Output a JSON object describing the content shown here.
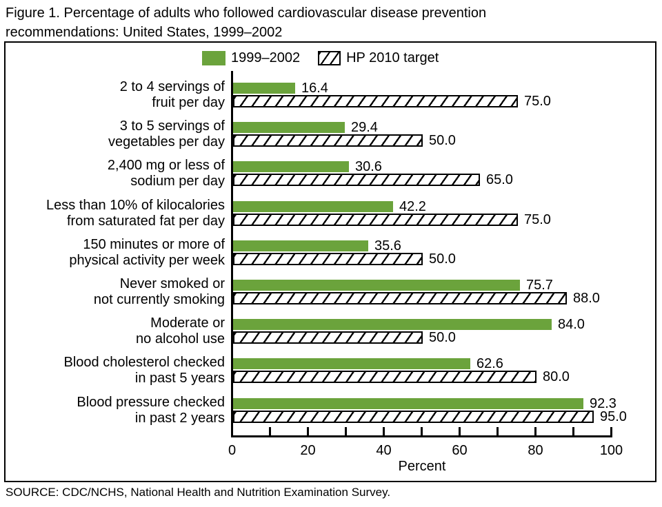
{
  "title_lines": [
    "Figure 1. Percentage of adults who followed cardiovascular disease prevention",
    "recommendations: United States, 1999–2002"
  ],
  "legend": {
    "series1": "1999–2002",
    "series2": "HP 2010 target"
  },
  "colors": {
    "series1_green": "#6ba33c",
    "axis_and_text": "#000000",
    "hatch_fill": "#ffffff"
  },
  "source": "SOURCE: CDC/NCHS, National Health and Nutrition Examination Survey.",
  "chart_data": {
    "type": "bar",
    "orientation": "horizontal",
    "title": "Figure 1. Percentage of adults who followed cardiovascular disease prevention recommendations: United States, 1999–2002",
    "categories": [
      [
        "2 to 4 servings of",
        "fruit per day"
      ],
      [
        "3 to 5 servings of",
        "vegetables per day"
      ],
      [
        "2,400 mg or less of",
        "sodium per day"
      ],
      [
        "Less than 10% of kilocalories",
        "from saturated fat per day"
      ],
      [
        "150 minutes or more of",
        "physical activity per week"
      ],
      [
        "Never smoked or",
        "not currently smoking"
      ],
      [
        "Moderate or",
        "no alcohol use"
      ],
      [
        "Blood cholesterol checked",
        "in past 5 years"
      ],
      [
        "Blood pressure checked",
        "in past 2 years"
      ]
    ],
    "series": [
      {
        "name": "1999–2002",
        "style": "solid-green",
        "values": [
          16.4,
          29.4,
          30.6,
          42.2,
          35.6,
          75.7,
          84.0,
          62.6,
          92.3
        ]
      },
      {
        "name": "HP 2010 target",
        "style": "hatched",
        "values": [
          75.0,
          50.0,
          65.0,
          75.0,
          50.0,
          88.0,
          50.0,
          80.0,
          95.0
        ]
      }
    ],
    "value_label_decimals": 1,
    "xlabel": "Percent",
    "xlim": [
      0,
      100
    ],
    "xticks": [
      0,
      20,
      40,
      60,
      80,
      100
    ],
    "minor_tick_step": 10,
    "grid": false,
    "legend_position": "top"
  }
}
